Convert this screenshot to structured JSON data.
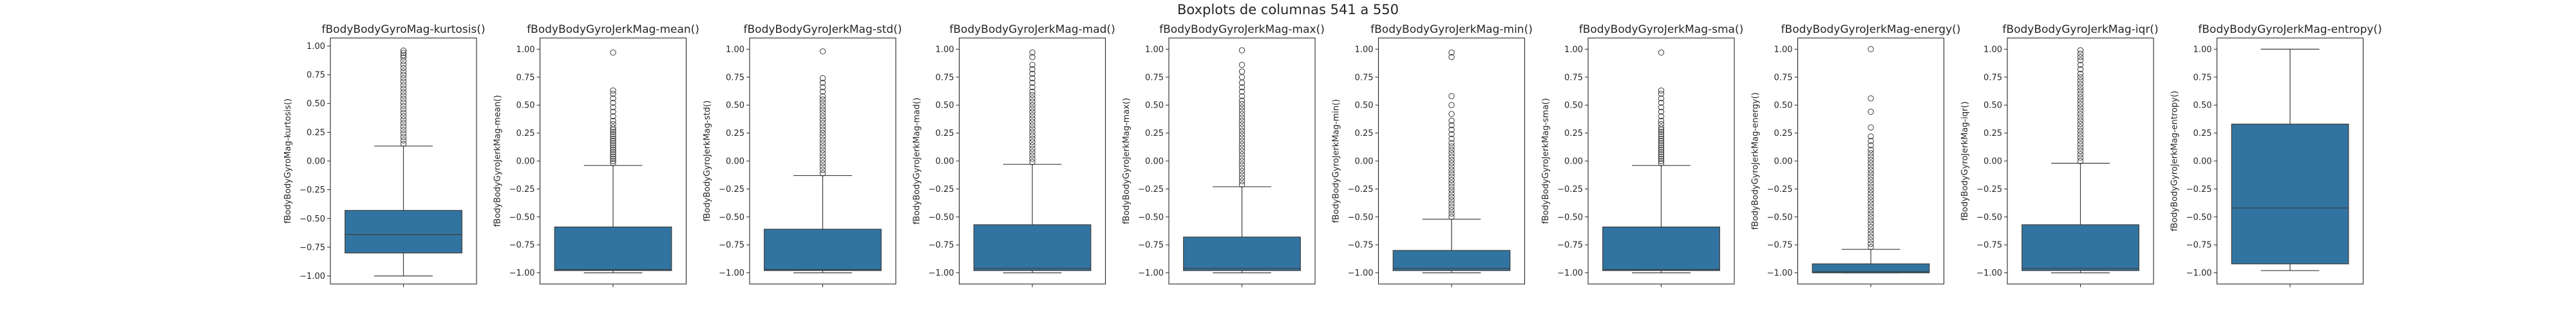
{
  "suptitle": "Boxplots de columnas 541 a 550",
  "colors": {
    "box_fill": "#3274a1",
    "line": "#3d3d3d",
    "frame": "#262626",
    "background": "#ffffff"
  },
  "chart_data": [
    {
      "type": "box",
      "title": "fBodyBodyGyroMag-kurtosis()",
      "ylabel": "fBodyBodyGyroMag-kurtosis()",
      "ylim": [
        -1.07,
        1.07
      ],
      "yticks": [
        1.0,
        0.75,
        0.5,
        0.25,
        0.0,
        -0.25,
        -0.5,
        -0.75,
        -1.0
      ],
      "ytick_labels": [
        "1.00",
        "0.75",
        "0.50",
        "0.25",
        "0.00",
        "−0.25",
        "−0.50",
        "−0.75",
        "−1.00"
      ],
      "whisker_low": -1.0,
      "q1": -0.8,
      "median": -0.64,
      "q3": -0.43,
      "whisker_high": 0.13,
      "outliers": [
        0.15,
        0.18,
        0.21,
        0.24,
        0.27,
        0.3,
        0.33,
        0.36,
        0.39,
        0.42,
        0.45,
        0.48,
        0.51,
        0.54,
        0.57,
        0.6,
        0.63,
        0.66,
        0.69,
        0.72,
        0.75,
        0.78,
        0.81,
        0.84,
        0.87,
        0.9,
        0.92,
        0.94,
        0.96
      ]
    },
    {
      "type": "box",
      "title": "fBodyBodyGyroJerkMag-mean()",
      "ylabel": "fBodyBodyGyroJerkMag-mean()",
      "ylim": [
        -1.1,
        1.1
      ],
      "yticks": [
        1.0,
        0.75,
        0.5,
        0.25,
        0.0,
        -0.25,
        -0.5,
        -0.75,
        -1.0
      ],
      "ytick_labels": [
        "1.00",
        "0.75",
        "0.50",
        "0.25",
        "0.00",
        "−0.25",
        "−0.50",
        "−0.75",
        "−1.00"
      ],
      "whisker_low": -1.0,
      "q1": -0.98,
      "median": -0.97,
      "q3": -0.59,
      "whisker_high": -0.04,
      "outliers": [
        -0.02,
        0.0,
        0.02,
        0.04,
        0.06,
        0.08,
        0.1,
        0.12,
        0.14,
        0.16,
        0.18,
        0.2,
        0.22,
        0.24,
        0.26,
        0.28,
        0.3,
        0.33,
        0.36,
        0.4,
        0.44,
        0.48,
        0.52,
        0.56,
        0.6,
        0.63,
        0.97
      ]
    },
    {
      "type": "box",
      "title": "fBodyBodyGyroJerkMag-std()",
      "ylabel": "fBodyBodyGyroJerkMag-std()",
      "ylim": [
        -1.1,
        1.1
      ],
      "yticks": [
        1.0,
        0.75,
        0.5,
        0.25,
        0.0,
        -0.25,
        -0.5,
        -0.75,
        -1.0
      ],
      "ytick_labels": [
        "1.00",
        "0.75",
        "0.50",
        "0.25",
        "0.00",
        "−0.25",
        "−0.50",
        "−0.75",
        "−1.00"
      ],
      "whisker_low": -1.0,
      "q1": -0.98,
      "median": -0.97,
      "q3": -0.61,
      "whisker_high": -0.13,
      "outliers": [
        -0.11,
        -0.08,
        -0.05,
        -0.02,
        0.01,
        0.04,
        0.07,
        0.1,
        0.13,
        0.16,
        0.19,
        0.22,
        0.25,
        0.28,
        0.31,
        0.34,
        0.37,
        0.4,
        0.43,
        0.46,
        0.49,
        0.52,
        0.55,
        0.58,
        0.62,
        0.66,
        0.7,
        0.74,
        0.98
      ]
    },
    {
      "type": "box",
      "title": "fBodyBodyGyroJerkMag-mad()",
      "ylabel": "fBodyBodyGyroJerkMag-mad()",
      "ylim": [
        -1.1,
        1.1
      ],
      "yticks": [
        1.0,
        0.75,
        0.5,
        0.25,
        0.0,
        -0.25,
        -0.5,
        -0.75,
        -1.0
      ],
      "ytick_labels": [
        "1.00",
        "0.75",
        "0.50",
        "0.25",
        "0.00",
        "−0.25",
        "−0.50",
        "−0.75",
        "−1.00"
      ],
      "whisker_low": -1.0,
      "q1": -0.98,
      "median": -0.96,
      "q3": -0.57,
      "whisker_high": -0.03,
      "outliers": [
        -0.01,
        0.02,
        0.05,
        0.08,
        0.11,
        0.14,
        0.17,
        0.2,
        0.23,
        0.26,
        0.29,
        0.32,
        0.35,
        0.38,
        0.41,
        0.44,
        0.47,
        0.5,
        0.53,
        0.56,
        0.59,
        0.62,
        0.66,
        0.7,
        0.74,
        0.78,
        0.82,
        0.86,
        0.93,
        0.97
      ]
    },
    {
      "type": "box",
      "title": "fBodyBodyGyroJerkMag-max()",
      "ylabel": "fBodyBodyGyroJerkMag-max()",
      "ylim": [
        -1.1,
        1.1
      ],
      "yticks": [
        1.0,
        0.75,
        0.5,
        0.25,
        0.0,
        -0.25,
        -0.5,
        -0.75,
        -1.0
      ],
      "ytick_labels": [
        "1.00",
        "0.75",
        "0.50",
        "0.25",
        "0.00",
        "−0.25",
        "−0.50",
        "−0.75",
        "−1.00"
      ],
      "whisker_low": -1.0,
      "q1": -0.98,
      "median": -0.96,
      "q3": -0.68,
      "whisker_high": -0.23,
      "outliers": [
        -0.21,
        -0.18,
        -0.15,
        -0.12,
        -0.09,
        -0.06,
        -0.03,
        0.0,
        0.03,
        0.06,
        0.09,
        0.12,
        0.15,
        0.18,
        0.21,
        0.24,
        0.27,
        0.3,
        0.33,
        0.36,
        0.39,
        0.42,
        0.45,
        0.48,
        0.51,
        0.54,
        0.58,
        0.62,
        0.66,
        0.7,
        0.75,
        0.8,
        0.86,
        0.99
      ]
    },
    {
      "type": "box",
      "title": "fBodyBodyGyroJerkMag-min()",
      "ylabel": "fBodyBodyGyroJerkMag-min()",
      "ylim": [
        -1.1,
        1.1
      ],
      "yticks": [
        1.0,
        0.75,
        0.5,
        0.25,
        0.0,
        -0.25,
        -0.5,
        -0.75,
        -1.0
      ],
      "ytick_labels": [
        "1.00",
        "0.75",
        "0.50",
        "0.25",
        "0.00",
        "−0.25",
        "−0.50",
        "−0.75",
        "−1.00"
      ],
      "whisker_low": -1.0,
      "q1": -0.98,
      "median": -0.96,
      "q3": -0.8,
      "whisker_high": -0.52,
      "outliers": [
        -0.5,
        -0.47,
        -0.44,
        -0.41,
        -0.38,
        -0.35,
        -0.32,
        -0.29,
        -0.26,
        -0.23,
        -0.2,
        -0.17,
        -0.14,
        -0.11,
        -0.08,
        -0.05,
        -0.02,
        0.01,
        0.04,
        0.07,
        0.1,
        0.13,
        0.16,
        0.2,
        0.24,
        0.28,
        0.32,
        0.36,
        0.42,
        0.5,
        0.58,
        0.93,
        0.97
      ]
    },
    {
      "type": "box",
      "title": "fBodyBodyGyroJerkMag-sma()",
      "ylabel": "fBodyBodyGyroJerkMag-sma()",
      "ylim": [
        -1.1,
        1.1
      ],
      "yticks": [
        1.0,
        0.75,
        0.5,
        0.25,
        0.0,
        -0.25,
        -0.5,
        -0.75,
        -1.0
      ],
      "ytick_labels": [
        "1.00",
        "0.75",
        "0.50",
        "0.25",
        "0.00",
        "−0.25",
        "−0.50",
        "−0.75",
        "−1.00"
      ],
      "whisker_low": -1.0,
      "q1": -0.98,
      "median": -0.97,
      "q3": -0.59,
      "whisker_high": -0.04,
      "outliers": [
        -0.02,
        0.0,
        0.02,
        0.04,
        0.06,
        0.08,
        0.1,
        0.12,
        0.14,
        0.16,
        0.18,
        0.2,
        0.22,
        0.24,
        0.26,
        0.28,
        0.3,
        0.33,
        0.36,
        0.4,
        0.44,
        0.48,
        0.52,
        0.56,
        0.6,
        0.63,
        0.97
      ]
    },
    {
      "type": "box",
      "title": "fBodyBodyGyroJerkMag-energy()",
      "ylabel": "fBodyBodyGyroJerkMag-energy()",
      "ylim": [
        -1.1,
        1.1
      ],
      "yticks": [
        1.0,
        0.75,
        0.5,
        0.25,
        0.0,
        -0.25,
        -0.5,
        -0.75,
        -1.0
      ],
      "ytick_labels": [
        "1.00",
        "0.75",
        "0.50",
        "0.25",
        "0.00",
        "−0.25",
        "−0.50",
        "−0.75",
        "−1.00"
      ],
      "whisker_low": -1.0,
      "q1": -1.0,
      "median": -0.99,
      "q3": -0.92,
      "whisker_high": -0.79,
      "outliers": [
        -0.77,
        -0.74,
        -0.71,
        -0.68,
        -0.65,
        -0.62,
        -0.59,
        -0.56,
        -0.53,
        -0.5,
        -0.47,
        -0.44,
        -0.41,
        -0.38,
        -0.35,
        -0.32,
        -0.29,
        -0.26,
        -0.23,
        -0.2,
        -0.17,
        -0.14,
        -0.11,
        -0.08,
        -0.05,
        -0.02,
        0.01,
        0.04,
        0.07,
        0.1,
        0.14,
        0.18,
        0.22,
        0.3,
        0.44,
        0.56,
        1.0
      ]
    },
    {
      "type": "box",
      "title": "fBodyBodyGyroJerkMag-iqr()",
      "ylabel": "fBodyBodyGyroJerkMag-iqr()",
      "ylim": [
        -1.1,
        1.1
      ],
      "yticks": [
        1.0,
        0.75,
        0.5,
        0.25,
        0.0,
        -0.25,
        -0.5,
        -0.75,
        -1.0
      ],
      "ytick_labels": [
        "1.00",
        "0.75",
        "0.50",
        "0.25",
        "0.00",
        "−0.25",
        "−0.50",
        "−0.75",
        "−1.00"
      ],
      "whisker_low": -1.0,
      "q1": -0.98,
      "median": -0.96,
      "q3": -0.57,
      "whisker_high": -0.02,
      "outliers": [
        0.0,
        0.03,
        0.06,
        0.09,
        0.12,
        0.15,
        0.18,
        0.21,
        0.24,
        0.27,
        0.3,
        0.33,
        0.36,
        0.39,
        0.42,
        0.45,
        0.48,
        0.51,
        0.54,
        0.57,
        0.6,
        0.63,
        0.66,
        0.69,
        0.72,
        0.75,
        0.78,
        0.82,
        0.86,
        0.9,
        0.93,
        0.96,
        0.99
      ]
    },
    {
      "type": "box",
      "title": "fBodyBodyGyroJerkMag-entropy()",
      "ylabel": "fBodyBodyGyroJerkMag-entropy()",
      "ylim": [
        -1.1,
        1.1
      ],
      "yticks": [
        1.0,
        0.75,
        0.5,
        0.25,
        0.0,
        -0.25,
        -0.5,
        -0.75,
        -1.0
      ],
      "ytick_labels": [
        "1.00",
        "0.75",
        "0.50",
        "0.25",
        "0.00",
        "−0.25",
        "−0.50",
        "−0.75",
        "−1.00"
      ],
      "whisker_low": -0.98,
      "q1": -0.92,
      "median": -0.42,
      "q3": 0.33,
      "whisker_high": 1.0,
      "outliers": []
    }
  ]
}
